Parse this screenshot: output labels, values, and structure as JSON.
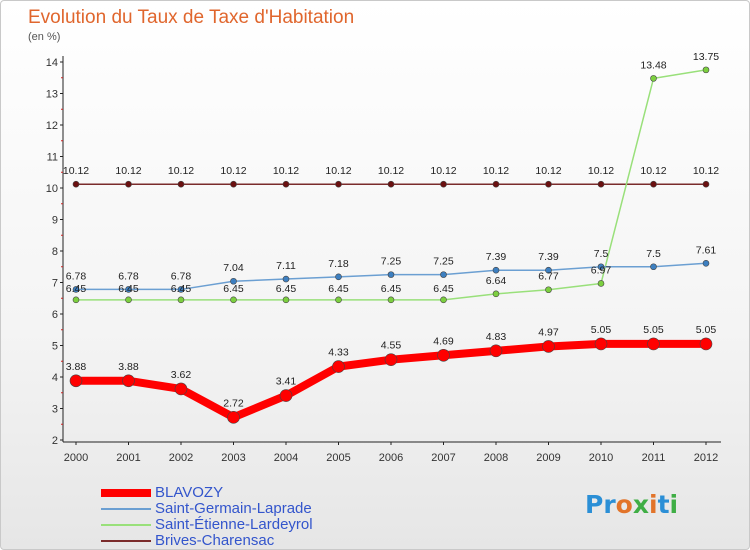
{
  "title": "Evolution du Taux de Taxe d'Habitation",
  "unit": "(en %)",
  "brand": {
    "text": "Proxiti"
  },
  "chart_data": {
    "type": "line",
    "title": "Evolution du Taux de Taxe d'Habitation",
    "ylabel": "(en %)",
    "xlabel": "",
    "categories": [
      "2000",
      "2001",
      "2002",
      "2003",
      "2004",
      "2005",
      "2006",
      "2007",
      "2008",
      "2009",
      "2010",
      "2011",
      "2012"
    ],
    "ylim": [
      2,
      14
    ],
    "yticks": [
      "2",
      "3",
      "4",
      "5",
      "6",
      "7",
      "8",
      "9",
      "10",
      "11",
      "12",
      "13",
      "14"
    ],
    "grid": false,
    "legend_position": "bottom-left",
    "series": [
      {
        "name": "BLAVOZY",
        "color": "#ff0000",
        "values": [
          3.88,
          3.88,
          3.62,
          2.72,
          3.41,
          4.33,
          4.55,
          4.69,
          4.83,
          4.97,
          5.05,
          5.05,
          5.05
        ],
        "labels": [
          "3.88",
          "3.88",
          "3.62",
          "2.72",
          "3.41",
          "4.33",
          "4.55",
          "4.69",
          "4.83",
          "4.97",
          "5.05",
          "5.05",
          "5.05"
        ]
      },
      {
        "name": "Saint-Germain-Laprade",
        "color": "#6b9fd2",
        "values": [
          6.78,
          6.78,
          6.78,
          7.04,
          7.11,
          7.18,
          7.25,
          7.25,
          7.39,
          7.39,
          7.5,
          7.5,
          7.61
        ],
        "labels": [
          "6.78",
          "6.78",
          "6.78",
          "7.04",
          "7.11",
          "7.18",
          "7.25",
          "7.25",
          "7.39",
          "7.39",
          "7.5",
          "7.5",
          "7.61"
        ]
      },
      {
        "name": "Saint-Étienne-Lardeyrol",
        "color": "#99e07a",
        "values": [
          6.45,
          6.45,
          6.45,
          6.45,
          6.45,
          6.45,
          6.45,
          6.45,
          6.64,
          6.77,
          6.97,
          13.48,
          13.75
        ],
        "labels": [
          "6.45",
          "6.45",
          "6.45",
          "6.45",
          "6.45",
          "6.45",
          "6.45",
          "6.45",
          "6.64",
          "6.77",
          "6.97",
          "13.48",
          "13.75"
        ]
      },
      {
        "name": "Brives-Charensac",
        "color": "#7a2b2b",
        "values": [
          10.12,
          10.12,
          10.12,
          10.12,
          10.12,
          10.12,
          10.12,
          10.12,
          10.12,
          10.12,
          10.12,
          10.12,
          10.12
        ],
        "labels": [
          "10.12",
          "10.12",
          "10.12",
          "10.12",
          "10.12",
          "10.12",
          "10.12",
          "10.12",
          "10.12",
          "10.12",
          "10.12",
          "10.12",
          "10.12"
        ]
      }
    ]
  }
}
